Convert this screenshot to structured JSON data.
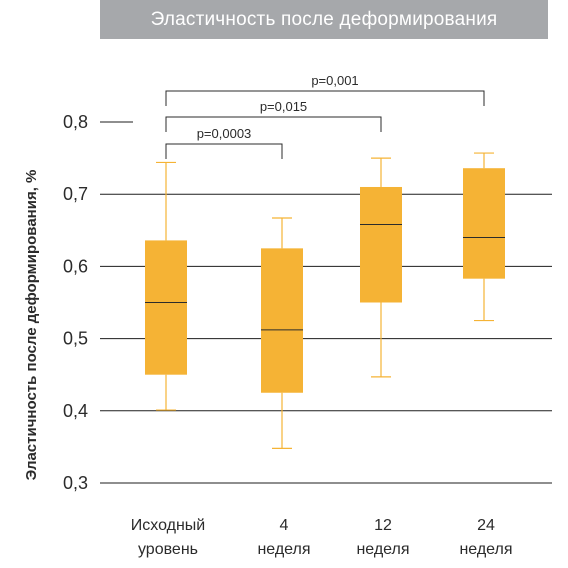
{
  "chart_data": {
    "type": "box",
    "title": "Эластичность после деформирования",
    "ylabel": "Эластичность после деформирования, %",
    "ylim": [
      0.3,
      0.8
    ],
    "yticks": [
      0.3,
      0.4,
      0.5,
      0.6,
      0.7,
      0.8
    ],
    "ytick_labels": [
      "0,3",
      "0,4",
      "0,5",
      "0,6",
      "0,7",
      "0,8"
    ],
    "grid": true,
    "box_color": "#f5b335",
    "categories": [
      [
        "Исходный",
        "уровень"
      ],
      [
        "4",
        "неделя"
      ],
      [
        "12",
        "неделя"
      ],
      [
        "24",
        "неделя"
      ]
    ],
    "boxes": [
      {
        "min": 0.401,
        "q1": 0.45,
        "median": 0.55,
        "q3": 0.636,
        "max": 0.744
      },
      {
        "min": 0.348,
        "q1": 0.425,
        "median": 0.512,
        "q3": 0.625,
        "max": 0.667
      },
      {
        "min": 0.447,
        "q1": 0.55,
        "median": 0.658,
        "q3": 0.71,
        "max": 0.75
      },
      {
        "min": 0.525,
        "q1": 0.583,
        "median": 0.64,
        "q3": 0.736,
        "max": 0.757
      }
    ],
    "annotations": [
      {
        "text": "p=0,001",
        "from": 0,
        "to": 3
      },
      {
        "text": "p=0,015",
        "from": 0,
        "to": 2
      },
      {
        "text": "p=0,0003",
        "from": 0,
        "to": 1
      }
    ]
  }
}
